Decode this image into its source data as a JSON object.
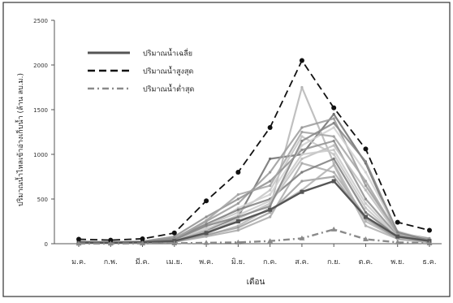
{
  "chart_data": {
    "type": "line",
    "title": "",
    "xlabel": "เดือน",
    "ylabel": "ปริมาณน้ำไหลเข้าอ่างเก็บน้ำ (ล้าน ลบ.ม.)",
    "categories": [
      "ม.ค.",
      "ก.พ.",
      "มี.ค.",
      "เม.ย.",
      "พ.ค.",
      "มิ.ย.",
      "ก.ค.",
      "ส.ค.",
      "ก.ย.",
      "ต.ค.",
      "พ.ย.",
      "ธ.ค."
    ],
    "ylim": [
      0,
      2500
    ],
    "yticks": [
      0,
      500,
      1000,
      1500,
      2000,
      2500
    ],
    "grid": false,
    "legend_position": "top-left",
    "series": [
      {
        "name": "ปริมาณน้ำเฉลี่ย",
        "style": "solid",
        "color": "#555555",
        "values": [
          12,
          10,
          15,
          30,
          120,
          250,
          380,
          580,
          700,
          300,
          80,
          30
        ]
      },
      {
        "name": "ปริมาณน้ำสูงสุด",
        "style": "dashed",
        "color": "#111111",
        "values": [
          50,
          40,
          55,
          120,
          480,
          800,
          1300,
          2050,
          1520,
          1060,
          240,
          150
        ]
      },
      {
        "name": "ปริมาณน้ำต่ำสุด",
        "style": "dash-dot",
        "color": "#8a8a8a",
        "values": [
          2,
          2,
          3,
          5,
          10,
          15,
          30,
          60,
          160,
          50,
          15,
          5
        ]
      }
    ],
    "background_series": [
      {
        "color": "#6e6e6e",
        "values": [
          15,
          12,
          18,
          35,
          150,
          300,
          950,
          1000,
          1450,
          900,
          100,
          35
        ]
      },
      {
        "color": "#b5b5b5",
        "values": [
          8,
          7,
          10,
          25,
          90,
          200,
          400,
          1750,
          900,
          250,
          60,
          20
        ]
      },
      {
        "color": "#9a9a9a",
        "values": [
          20,
          15,
          20,
          60,
          250,
          450,
          800,
          1300,
          1400,
          650,
          120,
          60
        ]
      },
      {
        "color": "#c4c4c4",
        "values": [
          10,
          8,
          12,
          40,
          200,
          350,
          600,
          1200,
          1000,
          400,
          70,
          30
        ]
      },
      {
        "color": "#8f8f8f",
        "values": [
          25,
          18,
          25,
          80,
          300,
          500,
          700,
          1050,
          1150,
          500,
          90,
          50
        ]
      },
      {
        "color": "#aaaaaa",
        "values": [
          5,
          4,
          8,
          20,
          80,
          150,
          300,
          900,
          800,
          300,
          50,
          15
        ]
      },
      {
        "color": "#d0d0d0",
        "values": [
          12,
          10,
          14,
          45,
          180,
          400,
          550,
          1100,
          1300,
          800,
          140,
          40
        ]
      },
      {
        "color": "#7c7c7c",
        "values": [
          18,
          14,
          20,
          55,
          220,
          380,
          500,
          800,
          950,
          350,
          80,
          25
        ]
      },
      {
        "color": "#bdbdbd",
        "values": [
          9,
          8,
          11,
          30,
          120,
          280,
          450,
          950,
          1100,
          600,
          100,
          30
        ]
      },
      {
        "color": "#a3a3a3",
        "values": [
          14,
          12,
          16,
          50,
          260,
          550,
          650,
          1250,
          1200,
          700,
          110,
          45
        ]
      },
      {
        "color": "#9d9d9d",
        "values": [
          6,
          5,
          9,
          25,
          100,
          180,
          350,
          700,
          750,
          280,
          60,
          20
        ]
      },
      {
        "color": "#c9c9c9",
        "values": [
          11,
          9,
          13,
          35,
          160,
          320,
          480,
          1000,
          1050,
          450,
          75,
          28
        ]
      },
      {
        "color": "#858585",
        "values": [
          16,
          13,
          17,
          45,
          200,
          300,
          420,
          1150,
          1350,
          920,
          130,
          35
        ]
      },
      {
        "color": "#b0b0b0",
        "values": [
          7,
          6,
          10,
          28,
          140,
          240,
          380,
          600,
          880,
          200,
          55,
          18
        ]
      }
    ]
  }
}
